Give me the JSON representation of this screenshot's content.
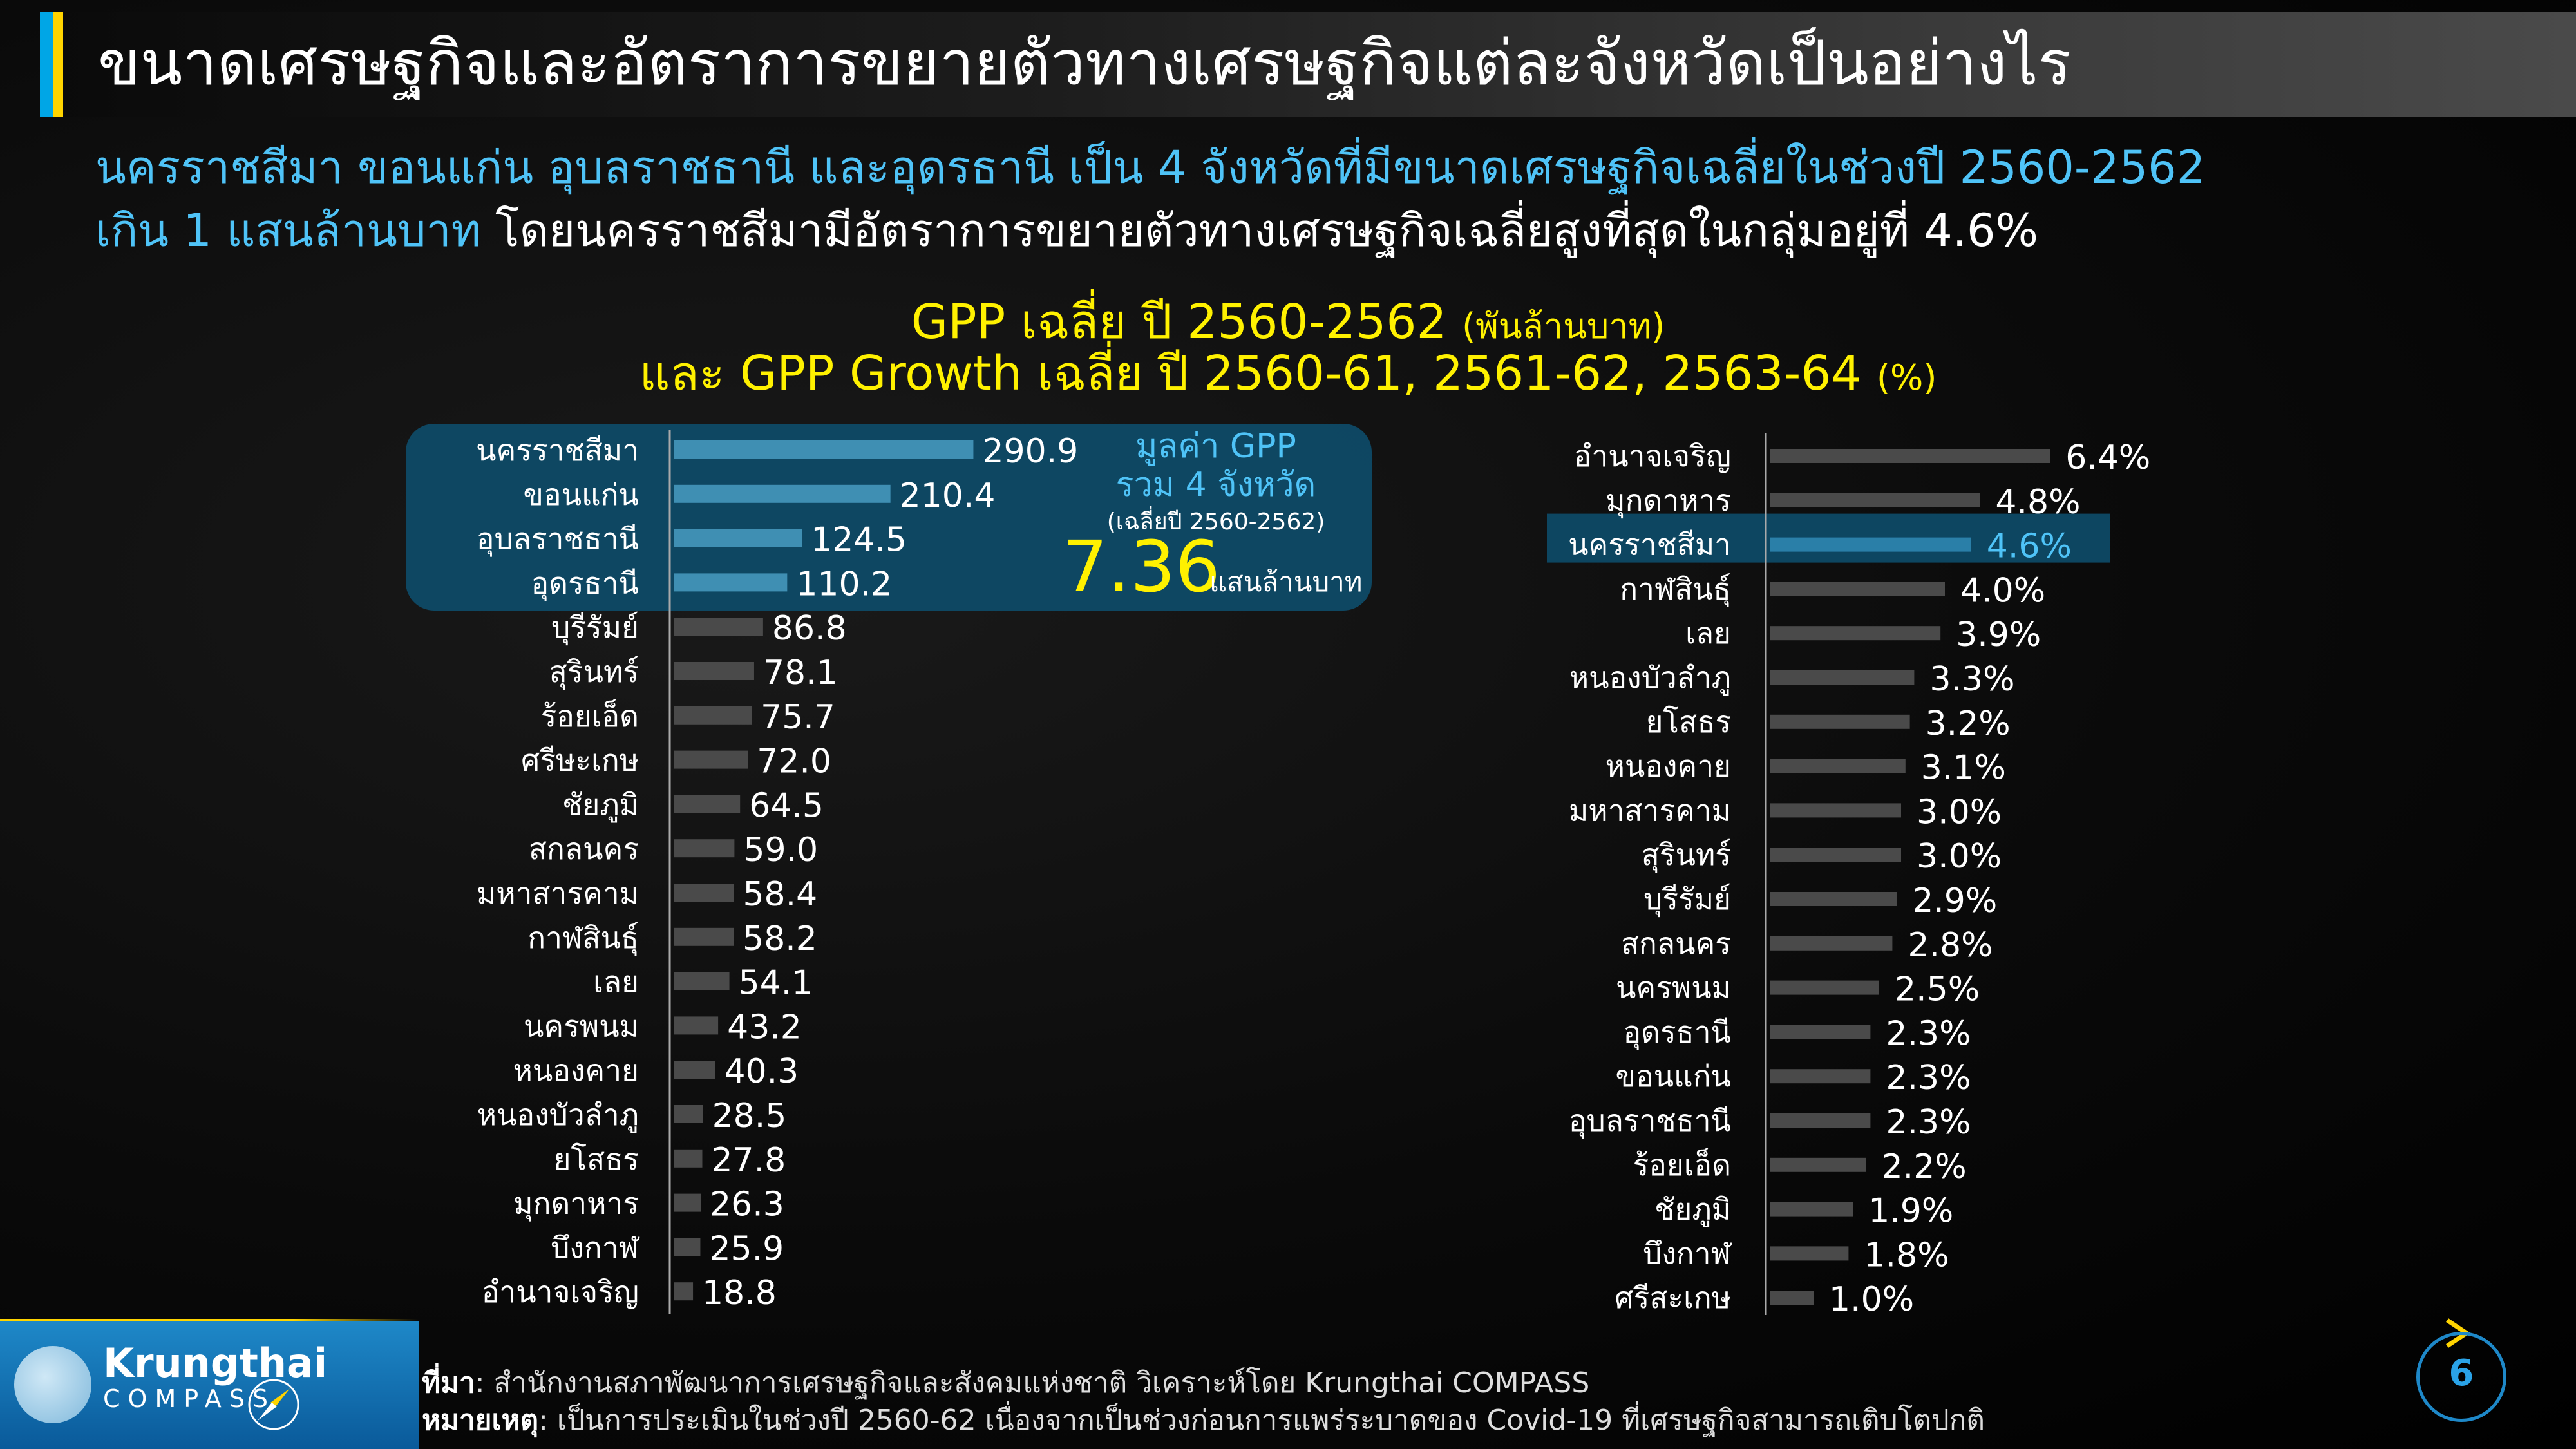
{
  "title": "ขนาดเศรษฐกิจและอัตราการขยายตัวทางเศรษฐกิจแต่ละจังหวัดเป็นอย่างไร",
  "subtitle_line1": "นครราชสีมา ขอนแก่น อุบลราชธานี และอุดรธานี เป็น 4 จังหวัดที่มีขนาดเศรษฐกิจเฉลี่ยในช่วงปี 2560-2562",
  "subtitle_line2_highlight": "เกิน 1 แสนล้านบาท",
  "subtitle_line2_rest": " โดยนครราชสีมามีอัตราการขยายตัวทางเศรษฐกิจเฉลี่ยสูงที่สุดในกลุ่มอยู่ที่ 4.6%",
  "chart_title_line1": "GPP เฉลี่ย ปี 2560-2562 ",
  "chart_title_line1_unit": "(พันล้านบาท)",
  "chart_title_line2": "และ GPP Growth เฉลี่ย ปี 2560-61, 2561-62, 2563-64 ",
  "chart_title_line2_unit": "(%)",
  "callout": {
    "label_line1": "มูลค่า GPP",
    "label_line2": "รวม 4 จังหวัด",
    "label_line3": "(เฉลี่ยปี 2560-2562)",
    "value": "7.36",
    "unit": "แสนล้านบาท"
  },
  "colors": {
    "bar": "#4a4a4a",
    "highlight_bar": "#2a7fa8",
    "highlight_box": "#0e4a66",
    "highlight_text": "#4fc3f7",
    "title_yellow": "#fff100",
    "value_yellow": "#fff100"
  },
  "chart_data": [
    {
      "type": "bar",
      "orientation": "horizontal",
      "categories": [
        "นครราชสีมา",
        "ขอนแก่น",
        "อุบลราชธานี",
        "อุดรธานี",
        "บุรีรัมย์",
        "สุรินทร์",
        "ร้อยเอ็ด",
        "ศรีษะเกษ",
        "ชัยภูมิ",
        "สกลนคร",
        "มหาสารคาม",
        "กาฬสินธุ์",
        "เลย",
        "นครพนม",
        "หนองคาย",
        "หนองบัวลำภู",
        "ยโสธร",
        "มุกดาหาร",
        "บึงกาฬ",
        "อำนาจเจริญ"
      ],
      "values": [
        290.9,
        210.4,
        124.5,
        110.2,
        86.8,
        78.1,
        75.7,
        72.0,
        64.5,
        59.0,
        58.4,
        58.2,
        54.1,
        43.2,
        40.3,
        28.5,
        27.8,
        26.3,
        25.9,
        18.8
      ],
      "value_labels": [
        "290.9",
        "210.4",
        "124.5",
        "110.2",
        "86.8",
        "78.1",
        "75.7",
        "72.0",
        "64.5",
        "59.0",
        "58.4",
        "58.2",
        "54.1",
        "43.2",
        "40.3",
        "28.5",
        "27.8",
        "26.3",
        "25.9",
        "18.8"
      ],
      "highlighted": [
        0,
        1,
        2,
        3
      ]
    },
    {
      "type": "bar",
      "orientation": "horizontal",
      "categories": [
        "อำนาจเจริญ",
        "มุกดาหาร",
        "นครราชสีมา",
        "กาฬสินธุ์",
        "เลย",
        "หนองบัวลำภู",
        "ยโสธร",
        "หนองคาย",
        "มหาสารคาม",
        "สุรินทร์",
        "บุรีรัมย์",
        "สกลนคร",
        "นครพนม",
        "อุดรธานี",
        "ขอนแก่น",
        "อุบลราชธานี",
        "ร้อยเอ็ด",
        "ชัยภูมิ",
        "บึงกาฬ",
        "ศรีสะเกษ"
      ],
      "values": [
        6.4,
        4.8,
        4.6,
        4.0,
        3.9,
        3.3,
        3.2,
        3.1,
        3.0,
        3.0,
        2.9,
        2.8,
        2.5,
        2.3,
        2.3,
        2.3,
        2.2,
        1.9,
        1.8,
        1.0
      ],
      "value_labels": [
        "6.4%",
        "4.8%",
        "4.6%",
        "4.0%",
        "3.9%",
        "3.3%",
        "3.2%",
        "3.1%",
        "3.0%",
        "3.0%",
        "2.9%",
        "2.8%",
        "2.5%",
        "2.3%",
        "2.3%",
        "2.3%",
        "2.2%",
        "1.9%",
        "1.8%",
        "1.0%"
      ],
      "highlighted": [
        2
      ]
    }
  ],
  "footer": {
    "logo_name": "Krungthai",
    "logo_sub": "COMPASS",
    "source_label": "ที่มา",
    "source_text": ": สำนักงานสภาพัฒนาการเศรษฐกิจและสังคมแห่งชาติ วิเคราะห์โดย Krungthai COMPASS",
    "note_label": "หมายเหตุ",
    "note_text": ": เป็นการประเมินในช่วงปี 2560-62 เนื่องจากเป็นช่วงก่อนการแพร่ระบาดของ Covid-19 ที่เศรษฐกิจสามารถเติบโตปกติ",
    "page_number": "6"
  }
}
